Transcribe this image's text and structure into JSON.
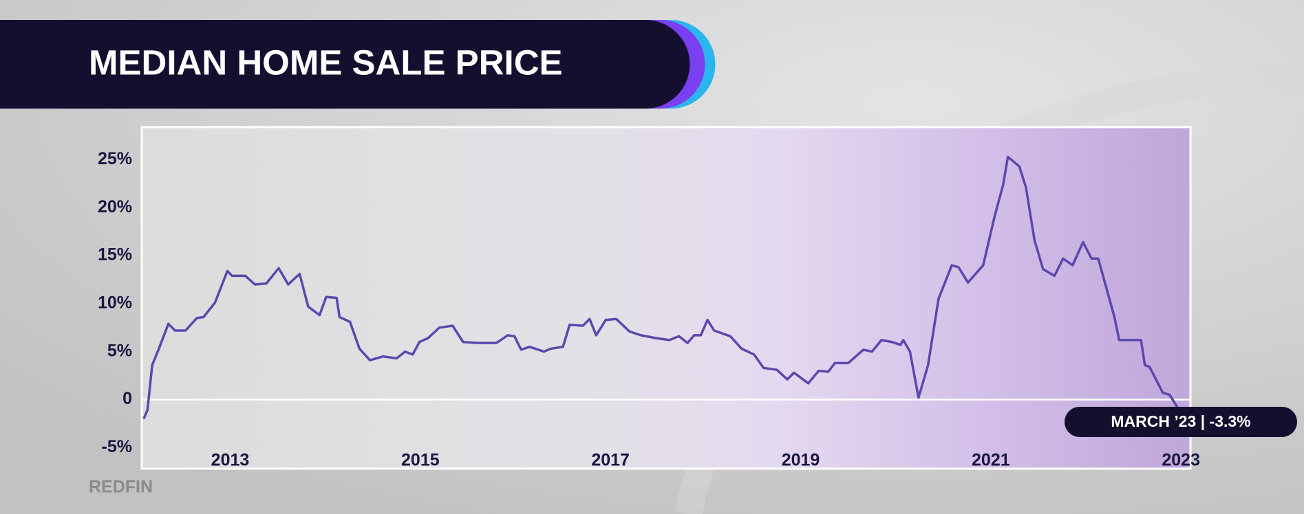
{
  "chart_data": {
    "type": "line",
    "title": "MEDIAN HOME SALE PRICE",
    "source": "REDFIN",
    "annotation": "MARCH ’23 | -3.3%",
    "x": [
      2012.09,
      2012.13,
      2012.18,
      2012.25,
      2012.35,
      2012.42,
      2012.53,
      2012.65,
      2012.72,
      2012.84,
      2012.97,
      2013.02,
      2013.16,
      2013.26,
      2013.38,
      2013.51,
      2013.61,
      2013.73,
      2013.82,
      2013.94,
      2014.01,
      2014.12,
      2014.15,
      2014.26,
      2014.36,
      2014.47,
      2014.61,
      2014.75,
      2014.84,
      2014.92,
      2014.99,
      2015.08,
      2015.2,
      2015.34,
      2015.45,
      2015.62,
      2015.8,
      2015.92,
      2015.99,
      2016.06,
      2016.15,
      2016.3,
      2016.37,
      2016.5,
      2016.57,
      2016.71,
      2016.78,
      2016.85,
      2016.95,
      2017.06,
      2017.2,
      2017.32,
      2017.48,
      2017.62,
      2017.72,
      2017.81,
      2017.88,
      2017.95,
      2018.02,
      2018.09,
      2018.26,
      2018.38,
      2018.51,
      2018.61,
      2018.75,
      2018.86,
      2018.93,
      2019.08,
      2019.19,
      2019.29,
      2019.36,
      2019.5,
      2019.66,
      2019.75,
      2019.85,
      2019.96,
      2020.05,
      2020.08,
      2020.15,
      2020.24,
      2020.34,
      2020.45,
      2020.59,
      2020.66,
      2020.76,
      2020.92,
      2021.04,
      2021.13,
      2021.18,
      2021.3,
      2021.37,
      2021.46,
      2021.55,
      2021.67,
      2021.76,
      2021.86,
      2021.97,
      2022.06,
      2022.13,
      2022.3,
      2022.35,
      2022.58,
      2022.62,
      2022.67,
      2022.81,
      2022.88,
      2022.97,
      2023.03
    ],
    "series": [
      {
        "color": "#5a48ad",
        "values": [
          -2.0,
          -1.1,
          3.6,
          5.3,
          7.9,
          7.2,
          7.2,
          8.5,
          8.6,
          10.1,
          13.4,
          12.9,
          12.9,
          12.0,
          12.1,
          13.7,
          12.0,
          13.1,
          9.7,
          8.8,
          10.7,
          10.6,
          8.6,
          8.1,
          5.3,
          4.1,
          4.5,
          4.3,
          5.0,
          4.7,
          6.0,
          6.4,
          7.5,
          7.7,
          6.0,
          5.9,
          5.9,
          6.7,
          6.6,
          5.2,
          5.5,
          5.0,
          5.3,
          5.5,
          7.8,
          7.7,
          8.4,
          6.7,
          8.3,
          8.4,
          7.1,
          6.7,
          6.4,
          6.2,
          6.6,
          5.9,
          6.7,
          6.7,
          8.3,
          7.2,
          6.6,
          5.3,
          4.7,
          3.3,
          3.1,
          2.1,
          2.8,
          1.7,
          3.0,
          2.9,
          3.8,
          3.8,
          5.2,
          5.0,
          6.2,
          6.0,
          5.7,
          6.2,
          5.0,
          0.2,
          3.6,
          10.5,
          14.0,
          13.8,
          12.2,
          14.0,
          19.1,
          22.4,
          25.3,
          24.3,
          22.1,
          16.6,
          13.6,
          12.9,
          14.7,
          14.0,
          16.4,
          14.7,
          14.7,
          8.6,
          6.2,
          6.2,
          3.6,
          3.4,
          0.7,
          0.5,
          -0.9,
          -3.3
        ]
      }
    ],
    "xlim": [
      2012.07,
      2023.1
    ],
    "ylim": [
      -7.2,
      28.4
    ],
    "xticks": [
      2013,
      2015,
      2017,
      2019,
      2021,
      2023
    ],
    "yticks": [
      {
        "value": -5,
        "label": "-5%"
      },
      0,
      {
        "value": 5,
        "label": "5%"
      },
      {
        "value": 10,
        "label": "10%"
      },
      {
        "value": 15,
        "label": "15%"
      },
      {
        "value": 20,
        "label": "20%"
      },
      {
        "value": 25,
        "label": "25%"
      }
    ],
    "grid": false
  }
}
